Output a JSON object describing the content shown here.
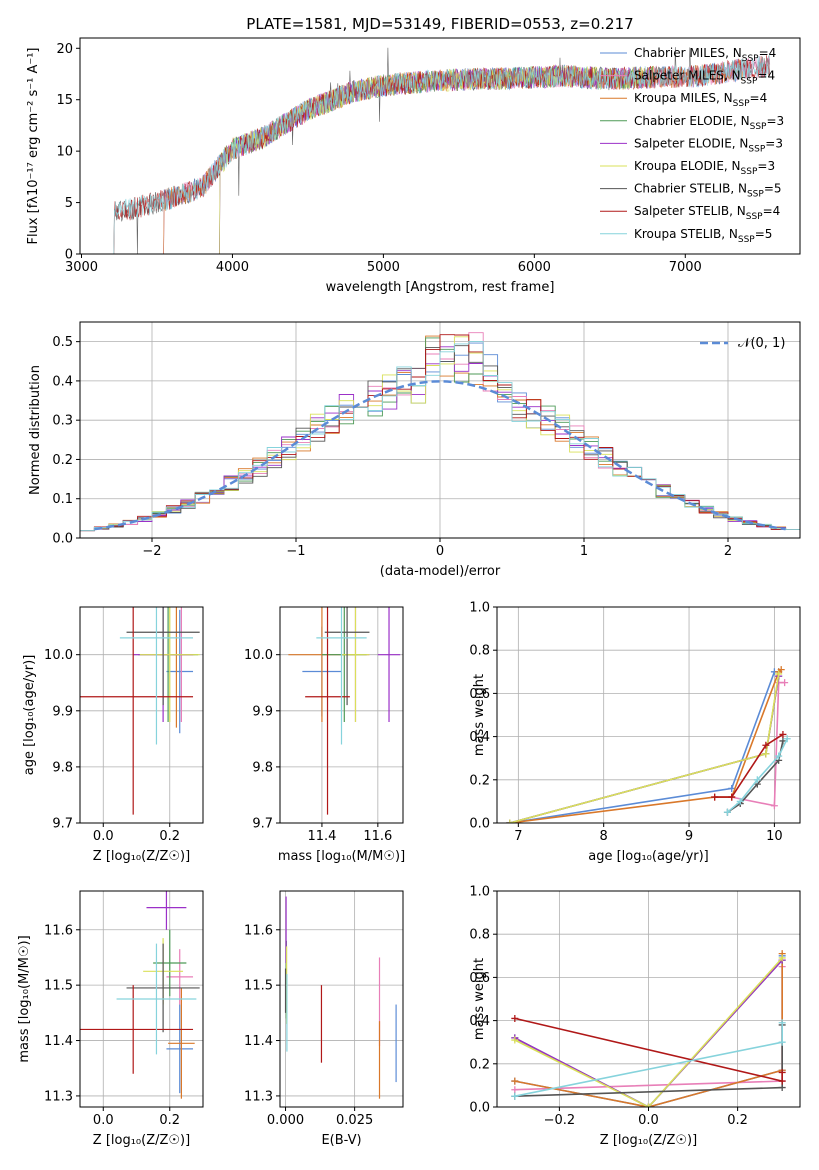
{
  "figure": {
    "title": "PLATE=1581, MJD=53149, FIBERID=0553, z=0.217"
  },
  "colors": {
    "Chabrier MILES": "#5b8bd6",
    "Salpeter MILES": "#e87fb8",
    "Kroupa MILES": "#d9782a",
    "Chabrier ELODIE": "#4e9a57",
    "Salpeter ELODIE": "#9b30c8",
    "Kroupa ELODIE": "#d9e05a",
    "Chabrier STELIB": "#555555",
    "Salpeter STELIB": "#b01818",
    "Kroupa STELIB": "#86d3dc"
  },
  "chart_data": [
    {
      "type": "line",
      "panel": "spectrum",
      "xlabel": "wavelength [Angstrom, rest frame]",
      "ylabel": "Flux [fλ10⁻¹⁷ erg cm⁻² s⁻¹ A⁻¹]",
      "xlim": [
        2990,
        7760
      ],
      "ylim": [
        0,
        21
      ],
      "xticks": [
        "3000",
        "4000",
        "5000",
        "6000",
        "7000"
      ],
      "yticks": [
        "0",
        "5",
        "10",
        "15",
        "20"
      ],
      "legend_position": "right",
      "series_x": [
        3210,
        3500,
        3800,
        4000,
        4200,
        4500,
        4800,
        5000,
        5300,
        5600,
        5900,
        6200,
        6500,
        6800,
        7100,
        7400,
        7560
      ],
      "series_y": [
        4.0,
        5.0,
        6.5,
        10.2,
        11.3,
        14.0,
        15.8,
        16.4,
        16.8,
        17.0,
        17.1,
        17.3,
        17.0,
        17.2,
        17.3,
        18.0,
        18.3
      ],
      "series": [
        {
          "name": "Chabrier MILES, N_SSP=4",
          "label_main": "Chabrier MILES, N",
          "label_sub": "SSP",
          "label_tail": "=4",
          "start": 3540,
          "end": 7380
        },
        {
          "name": "Salpeter MILES, N_SSP=4",
          "label_main": "Salpeter MILES, N",
          "label_sub": "SSP",
          "label_tail": "=4",
          "start": 3540,
          "end": 7560
        },
        {
          "name": "Kroupa MILES, N_SSP=4",
          "label_main": "Kroupa MILES, N",
          "label_sub": "SSP",
          "label_tail": "=4",
          "start": 3540,
          "end": 7380
        },
        {
          "name": "Chabrier ELODIE, N_SSP=3",
          "label_main": "Chabrier ELODIE, N",
          "label_sub": "SSP",
          "label_tail": "=3",
          "start": 3910,
          "end": 6790
        },
        {
          "name": "Salpeter ELODIE, N_SSP=3",
          "label_main": "Salpeter ELODIE, N",
          "label_sub": "SSP",
          "label_tail": "=3",
          "start": 3910,
          "end": 6790
        },
        {
          "name": "Kroupa ELODIE, N_SSP=3",
          "label_main": "Kroupa ELODIE, N",
          "label_sub": "SSP",
          "label_tail": "=3",
          "start": 3910,
          "end": 6790
        },
        {
          "name": "Chabrier STELIB, N_SSP=5",
          "label_main": "Chabrier STELIB, N",
          "label_sub": "SSP",
          "label_tail": "=5",
          "start": 3210,
          "end": 7560
        },
        {
          "name": "Salpeter STELIB, N_SSP=4",
          "label_main": "Salpeter STELIB, N",
          "label_sub": "SSP",
          "label_tail": "=4",
          "start": 3210,
          "end": 7560
        },
        {
          "name": "Kroupa STELIB, N_SSP=5",
          "label_main": "Kroupa STELIB, N",
          "label_sub": "SSP",
          "label_tail": "=5",
          "start": 3210,
          "end": 7560
        }
      ]
    },
    {
      "type": "line",
      "panel": "residual-histogram",
      "xlabel": "(data-model)/error",
      "ylabel": "Normed distribution",
      "xlim": [
        -2.5,
        2.5
      ],
      "ylim": [
        0,
        0.55
      ],
      "xticks": [
        "−2",
        "−1",
        "0",
        "1",
        "2"
      ],
      "yticks": [
        "0.0",
        "0.1",
        "0.2",
        "0.3",
        "0.4",
        "0.5"
      ],
      "grid": true,
      "legend_position": "top-right",
      "reference_label": "𝒩(0, 1)",
      "bin_width": 0.1
    },
    {
      "type": "scatter",
      "panel": "age-vs-Z",
      "xlabel": "Z [log₁₀(Z/Z☉)]",
      "ylabel": "age  [log₁₀(age/yr)]",
      "xlim": [
        -0.07,
        0.3
      ],
      "ylim": [
        9.7,
        10.085
      ],
      "xticks": [
        "0.0",
        "0.2"
      ],
      "yticks": [
        "9.7",
        "9.8",
        "9.9",
        "10.0"
      ],
      "grid": true,
      "series": [
        {
          "name": "Chabrier MILES",
          "x": 0.23,
          "xerr": 0.04,
          "y": 9.97,
          "yerr": 0.11
        },
        {
          "name": "Salpeter MILES",
          "x": 0.235,
          "xerr": 0.04,
          "y": 10.0,
          "yerr": 0.12
        },
        {
          "name": "Kroupa MILES",
          "x": 0.22,
          "xerr": 0.05,
          "y": 10.0,
          "yerr": 0.13
        },
        {
          "name": "Chabrier ELODIE",
          "x": 0.195,
          "xerr": 0.09,
          "y": 10.0,
          "yerr": 0.12
        },
        {
          "name": "Salpeter ELODIE",
          "x": 0.18,
          "xerr": 0.09,
          "y": 10.0,
          "yerr": 0.12
        },
        {
          "name": "Kroupa ELODIE",
          "x": 0.2,
          "xerr": 0.09,
          "y": 10.0,
          "yerr": 0.12
        },
        {
          "name": "Chabrier STELIB",
          "x": 0.18,
          "xerr": 0.11,
          "y": 10.04,
          "yerr": 0.13
        },
        {
          "name": "Salpeter STELIB",
          "x": 0.09,
          "xerr": 0.18,
          "y": 9.925,
          "yerr": 0.21
        },
        {
          "name": "Kroupa STELIB",
          "x": 0.16,
          "xerr": 0.11,
          "y": 10.03,
          "yerr": 0.19
        }
      ]
    },
    {
      "type": "scatter",
      "panel": "age-vs-mass",
      "xlabel": "mass [log₁₀(M/M☉)]",
      "ylabel": "",
      "xlim": [
        11.25,
        11.69
      ],
      "ylim": [
        9.7,
        10.085
      ],
      "xticks": [
        "11.4",
        "11.6"
      ],
      "yticks": [
        "9.7",
        "9.8",
        "9.9",
        "10.0"
      ],
      "grid": true,
      "series": [
        {
          "name": "Chabrier MILES",
          "x": 11.4,
          "xerr": 0.07,
          "y": 9.97,
          "yerr": 0.08
        },
        {
          "name": "Salpeter MILES",
          "x": 11.52,
          "xerr": 0.05,
          "y": 10.0,
          "yerr": 0.12
        },
        {
          "name": "Kroupa MILES",
          "x": 11.4,
          "xerr": 0.12,
          "y": 10.0,
          "yerr": 0.12
        },
        {
          "name": "Chabrier ELODIE",
          "x": 11.48,
          "xerr": 0.08,
          "y": 10.0,
          "yerr": 0.12
        },
        {
          "name": "Salpeter ELODIE",
          "x": 11.64,
          "xerr": 0.04,
          "y": 10.0,
          "yerr": 0.12
        },
        {
          "name": "Kroupa ELODIE",
          "x": 11.52,
          "xerr": 0.05,
          "y": 10.0,
          "yerr": 0.12
        },
        {
          "name": "Chabrier STELIB",
          "x": 11.49,
          "xerr": 0.08,
          "y": 10.04,
          "yerr": 0.13
        },
        {
          "name": "Salpeter STELIB",
          "x": 11.42,
          "xerr": 0.08,
          "y": 9.925,
          "yerr": 0.21
        },
        {
          "name": "Kroupa STELIB",
          "x": 11.47,
          "xerr": 0.09,
          "y": 10.03,
          "yerr": 0.19
        }
      ]
    },
    {
      "type": "line",
      "panel": "mass-weight-vs-age",
      "xlabel": "age  [log₁₀(age/yr)]",
      "ylabel": "mass weight",
      "xlim": [
        6.75,
        10.3
      ],
      "ylim": [
        0,
        1.0
      ],
      "xticks": [
        "7",
        "8",
        "9",
        "10"
      ],
      "yticks": [
        "0.0",
        "0.2",
        "0.4",
        "0.6",
        "0.8",
        "1.0"
      ],
      "grid": true,
      "series": [
        {
          "name": "Chabrier MILES",
          "x": [
            6.9,
            9.5,
            10.0,
            10.05
          ],
          "y": [
            0.0,
            0.16,
            0.7,
            0.7
          ]
        },
        {
          "name": "Salpeter MILES",
          "x": [
            9.5,
            10.0,
            10.05,
            10.12
          ],
          "y": [
            0.12,
            0.08,
            0.65,
            0.65
          ]
        },
        {
          "name": "Kroupa MILES",
          "x": [
            6.9,
            9.3,
            9.5,
            10.05,
            10.08
          ],
          "y": [
            0.0,
            0.12,
            0.12,
            0.7,
            0.71
          ]
        },
        {
          "name": "Chabrier ELODIE",
          "x": [
            6.9,
            9.9,
            10.05
          ],
          "y": [
            0.0,
            0.32,
            0.68
          ]
        },
        {
          "name": "Salpeter ELODIE",
          "x": [
            6.9,
            9.9,
            10.05
          ],
          "y": [
            0.0,
            0.32,
            0.68
          ]
        },
        {
          "name": "Kroupa ELODIE",
          "x": [
            6.9,
            9.9,
            10.05
          ],
          "y": [
            0.0,
            0.32,
            0.69
          ]
        },
        {
          "name": "Chabrier STELIB",
          "x": [
            9.45,
            9.6,
            9.8,
            10.05,
            10.1
          ],
          "y": [
            0.05,
            0.09,
            0.18,
            0.29,
            0.38
          ]
        },
        {
          "name": "Salpeter STELIB",
          "x": [
            9.3,
            9.5,
            9.9,
            10.1
          ],
          "y": [
            0.12,
            0.12,
            0.36,
            0.41
          ]
        },
        {
          "name": "Kroupa STELIB",
          "x": [
            9.45,
            9.6,
            9.8,
            10.05,
            10.15
          ],
          "y": [
            0.05,
            0.1,
            0.2,
            0.31,
            0.39
          ]
        }
      ]
    },
    {
      "type": "scatter",
      "panel": "mass-vs-Z",
      "xlabel": "Z [log₁₀(Z/Z☉)]",
      "ylabel": "mass [log₁₀(M/M☉)]",
      "xlim": [
        -0.07,
        0.3
      ],
      "ylim": [
        11.28,
        11.67
      ],
      "xticks": [
        "0.0",
        "0.2"
      ],
      "yticks": [
        "11.3",
        "11.4",
        "11.5",
        "11.6"
      ],
      "grid": true,
      "series": [
        {
          "name": "Chabrier MILES",
          "x": 0.23,
          "xerr": 0.04,
          "y": 11.385,
          "yerr": 0.08
        },
        {
          "name": "Salpeter MILES",
          "x": 0.23,
          "xerr": 0.04,
          "y": 11.515,
          "yerr": 0.05
        },
        {
          "name": "Kroupa MILES",
          "x": 0.235,
          "xerr": 0.04,
          "y": 11.395,
          "yerr": 0.1
        },
        {
          "name": "Chabrier ELODIE",
          "x": 0.2,
          "xerr": 0.05,
          "y": 11.54,
          "yerr": 0.06
        },
        {
          "name": "Salpeter ELODIE",
          "x": 0.19,
          "xerr": 0.06,
          "y": 11.64,
          "yerr": 0.04
        },
        {
          "name": "Kroupa ELODIE",
          "x": 0.18,
          "xerr": 0.06,
          "y": 11.525,
          "yerr": 0.06
        },
        {
          "name": "Chabrier STELIB",
          "x": 0.18,
          "xerr": 0.11,
          "y": 11.495,
          "yerr": 0.08
        },
        {
          "name": "Salpeter STELIB",
          "x": 0.09,
          "xerr": 0.18,
          "y": 11.42,
          "yerr": 0.08
        },
        {
          "name": "Kroupa STELIB",
          "x": 0.16,
          "xerr": 0.12,
          "y": 11.475,
          "yerr": 0.1
        }
      ]
    },
    {
      "type": "scatter",
      "panel": "mass-vs-EBV",
      "xlabel": "E(B-V)",
      "ylabel": "",
      "xlim": [
        -0.002,
        0.0425
      ],
      "ylim": [
        11.28,
        11.67
      ],
      "xticks": [
        "0.000",
        "0.025"
      ],
      "yticks": [
        "11.3",
        "11.4",
        "11.5",
        "11.6"
      ],
      "grid": true,
      "series": [
        {
          "name": "Chabrier MILES",
          "x": 0.04,
          "y": 11.395,
          "yerr": 0.07
        },
        {
          "name": "Salpeter MILES",
          "x": 0.034,
          "y": 11.47,
          "yerr": 0.08
        },
        {
          "name": "Kroupa MILES",
          "x": 0.034,
          "y": 11.365,
          "yerr": 0.07
        },
        {
          "name": "Chabrier ELODIE",
          "x": 0.0003,
          "y": 11.51,
          "yerr": 0.07
        },
        {
          "name": "Salpeter ELODIE",
          "x": 0.0002,
          "y": 11.6,
          "yerr": 0.06
        },
        {
          "name": "Kroupa ELODIE",
          "x": 0.0004,
          "y": 11.5,
          "yerr": 0.07
        },
        {
          "name": "Chabrier STELIB",
          "x": 0.0,
          "y": 11.49,
          "yerr": 0.04
        },
        {
          "name": "Salpeter STELIB",
          "x": 0.013,
          "y": 11.43,
          "yerr": 0.07
        },
        {
          "name": "Kroupa STELIB",
          "x": 0.0005,
          "y": 11.45,
          "yerr": 0.07
        }
      ]
    },
    {
      "type": "line",
      "panel": "mass-weight-vs-Z",
      "xlabel": "Z [log₁₀(Z/Z☉)]",
      "ylabel": "mass weight",
      "xlim": [
        -0.34,
        0.34
      ],
      "ylim": [
        0,
        1.0
      ],
      "xticks": [
        "−0.2",
        "0.0",
        "0.2"
      ],
      "yticks": [
        "0.0",
        "0.2",
        "0.4",
        "0.6",
        "0.8",
        "1.0"
      ],
      "grid": true,
      "series": [
        {
          "name": "Chabrier MILES",
          "x": [
            -0.3,
            0.0,
            0.3,
            0.3
          ],
          "y": [
            0.12,
            0.0,
            0.17,
            0.7
          ]
        },
        {
          "name": "Salpeter MILES",
          "x": [
            -0.3,
            0.3,
            0.3
          ],
          "y": [
            0.08,
            0.12,
            0.65
          ]
        },
        {
          "name": "Kroupa MILES",
          "x": [
            -0.3,
            0.0,
            0.3,
            0.3
          ],
          "y": [
            0.12,
            0.0,
            0.17,
            0.71
          ]
        },
        {
          "name": "Chabrier ELODIE",
          "x": [
            -0.3,
            0.0,
            0.3
          ],
          "y": [
            0.32,
            0.0,
            0.68
          ]
        },
        {
          "name": "Salpeter ELODIE",
          "x": [
            -0.3,
            0.0,
            0.3
          ],
          "y": [
            0.32,
            0.0,
            0.68
          ]
        },
        {
          "name": "Kroupa ELODIE",
          "x": [
            -0.3,
            0.0,
            0.3
          ],
          "y": [
            0.31,
            0.0,
            0.69
          ]
        },
        {
          "name": "Chabrier STELIB",
          "x": [
            -0.3,
            0.3,
            0.3
          ],
          "y": [
            0.05,
            0.09,
            0.38
          ]
        },
        {
          "name": "Salpeter STELIB",
          "x": [
            -0.3,
            0.3,
            0.3
          ],
          "y": [
            0.41,
            0.12,
            0.16
          ]
        },
        {
          "name": "Kroupa STELIB",
          "x": [
            -0.3,
            0.3,
            0.3
          ],
          "y": [
            0.05,
            0.3,
            0.39
          ]
        }
      ]
    }
  ]
}
